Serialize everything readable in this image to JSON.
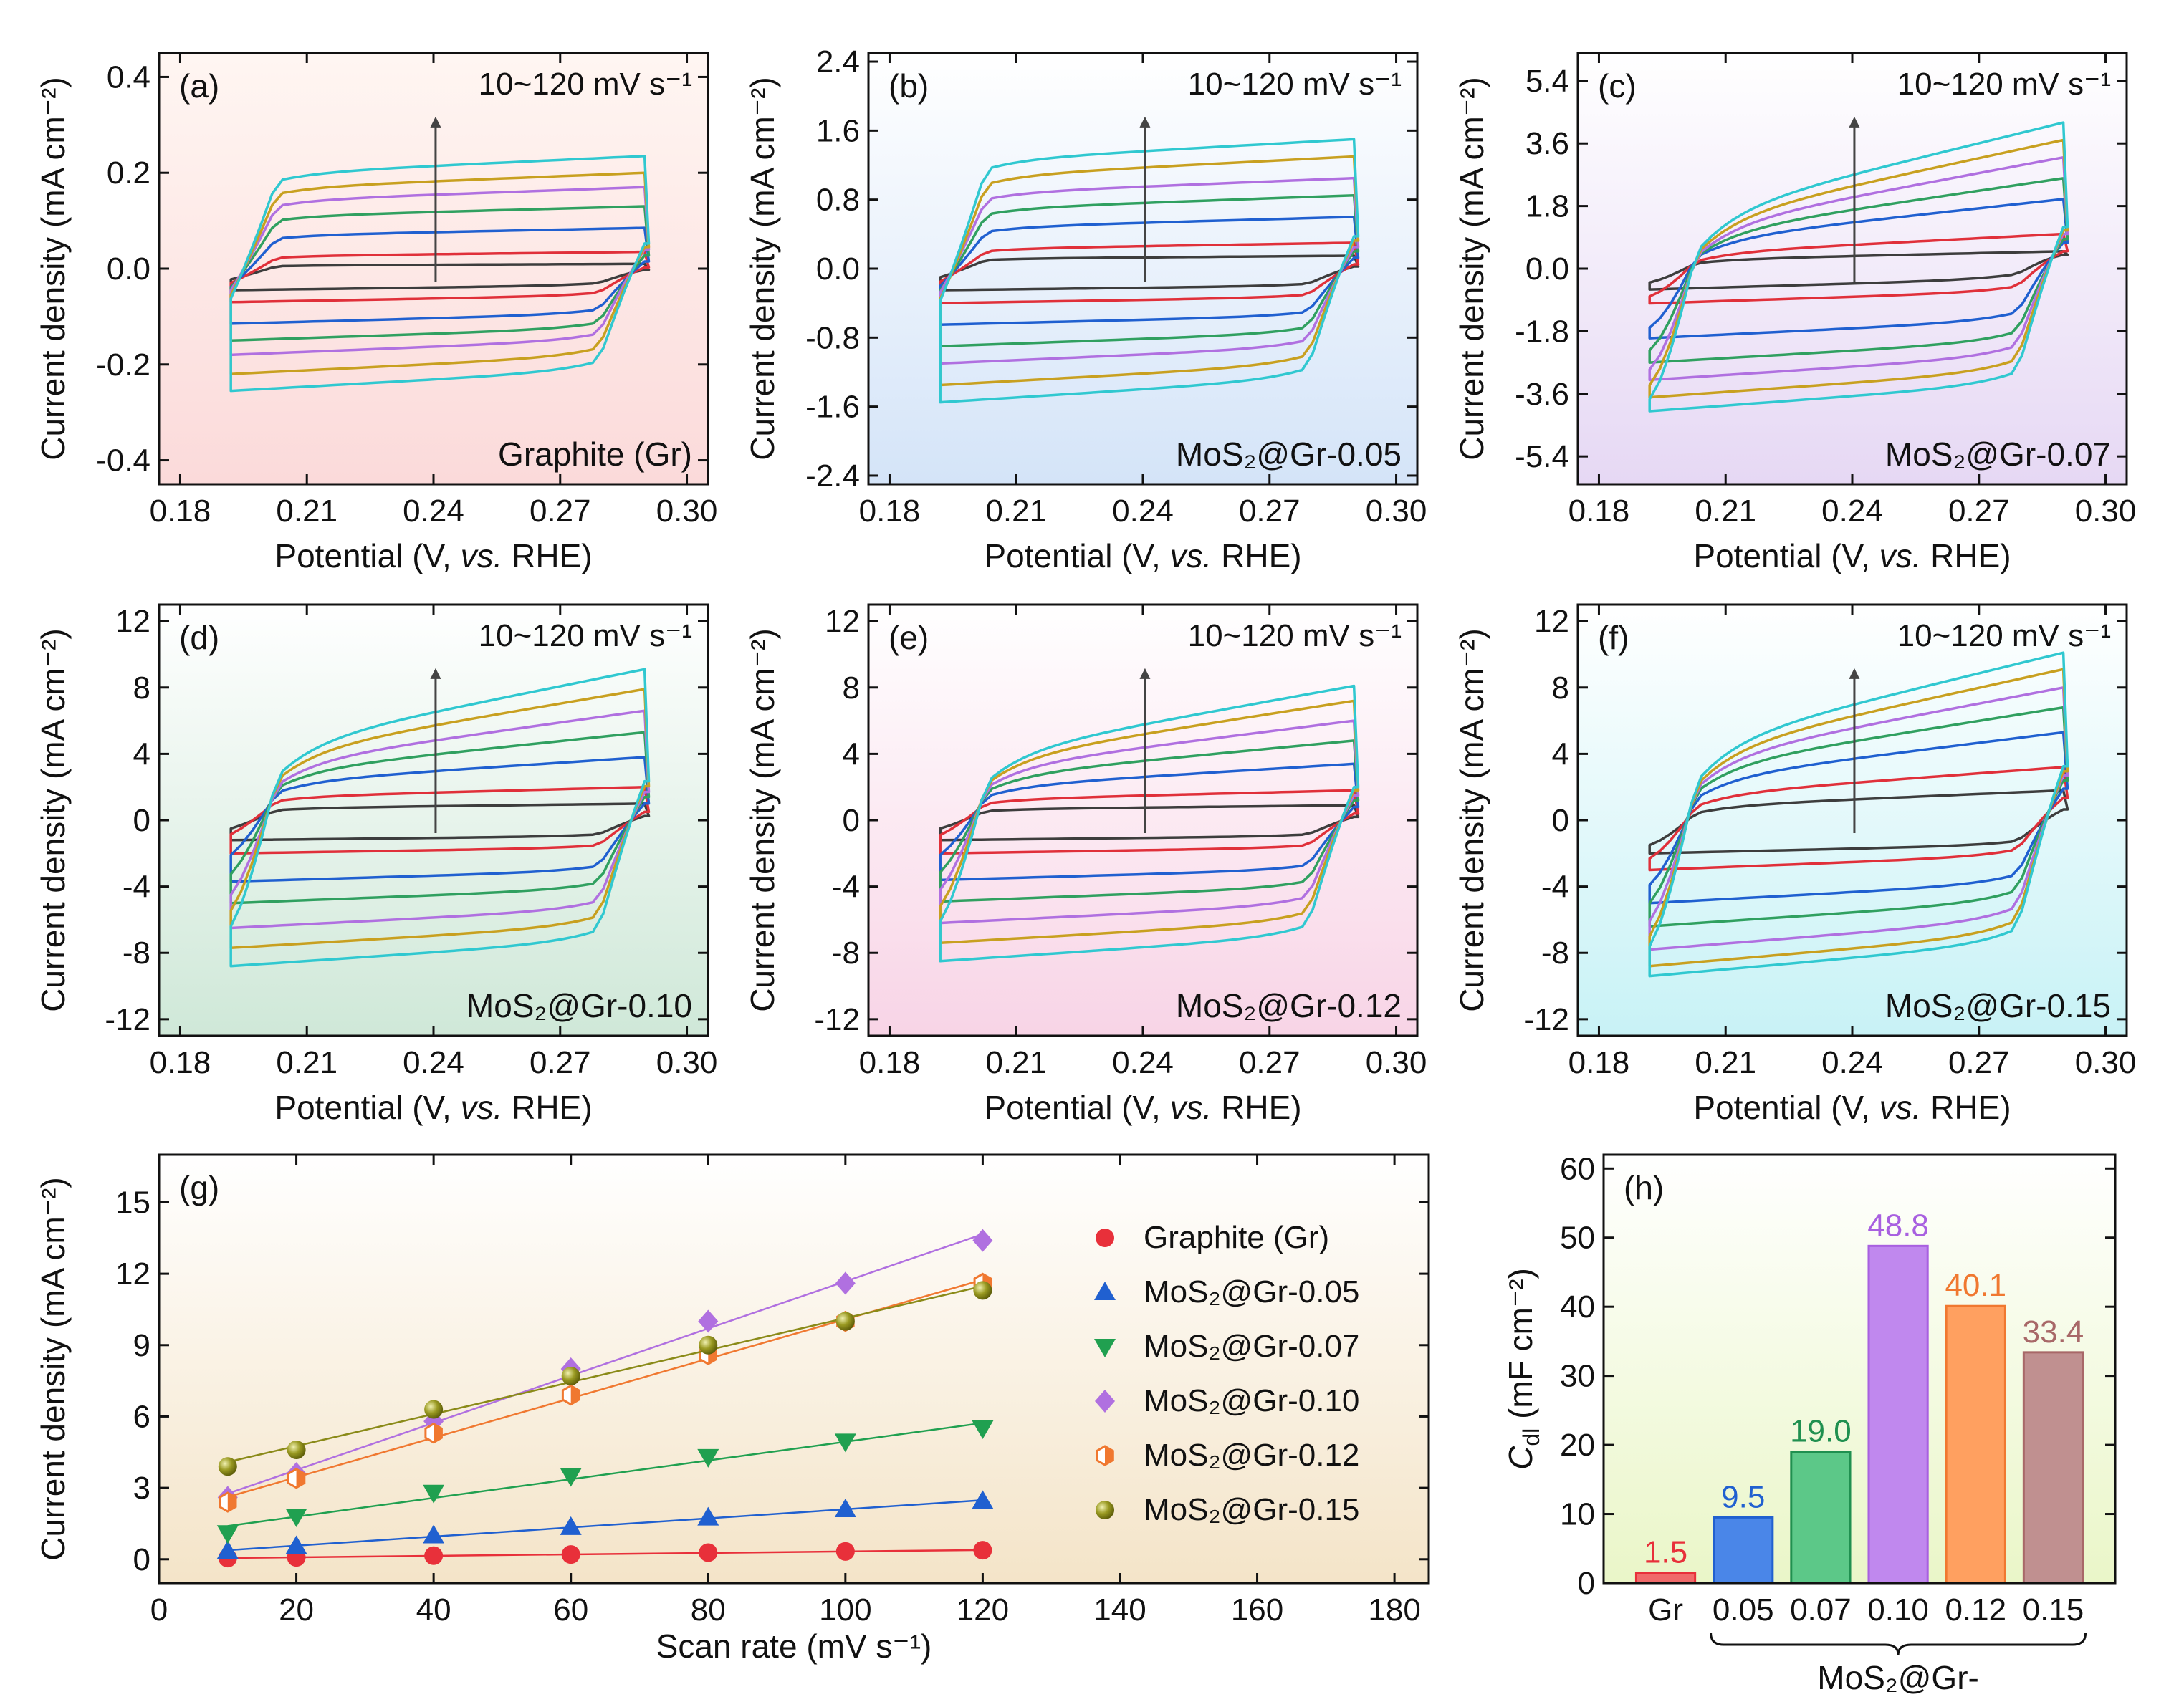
{
  "figure": {
    "background_colors": [
      "#fbe0e0",
      "#dce8f8",
      "#ece0f6",
      "#dff0e4",
      "#fbe0ee",
      "#d8f6f8"
    ],
    "cv_colors": [
      "#3d3d3d",
      "#e0303a",
      "#2060d0",
      "#30a060",
      "#b070e0",
      "#c8a020",
      "#30c8d0"
    ]
  },
  "chart_data": [
    {
      "id": "a",
      "type": "line",
      "panel_label": "(a)",
      "sample_label": "Graphite (Gr)",
      "rate_label": "10~120 mV s⁻¹",
      "xlabel_main": "Potential (V, ",
      "xlabel_italic": "vs.",
      "xlabel_end": " RHE)",
      "ylabel": "Current density (mA cm⁻²)",
      "xlim": [
        0.175,
        0.305
      ],
      "ylim": [
        -0.45,
        0.45
      ],
      "xticks": [
        "0.18",
        "0.21",
        "0.24",
        "0.27",
        "0.30"
      ],
      "yticks": [
        "-0.4",
        "-0.2",
        "0.0",
        "0.2",
        "0.4"
      ],
      "cv_loops": [
        {
          "scan_rate": 10,
          "upper_start": 0.0,
          "upper_end": 0.01,
          "lower_start": -0.045,
          "lower_end": -0.015
        },
        {
          "scan_rate": 20,
          "upper_start": 0.01,
          "upper_end": 0.035,
          "lower_start": -0.07,
          "lower_end": -0.03
        },
        {
          "scan_rate": 40,
          "upper_start": 0.04,
          "upper_end": 0.085,
          "lower_start": -0.115,
          "lower_end": -0.055
        },
        {
          "scan_rate": 60,
          "upper_start": 0.07,
          "upper_end": 0.13,
          "lower_start": -0.15,
          "lower_end": -0.075
        },
        {
          "scan_rate": 80,
          "upper_start": 0.09,
          "upper_end": 0.17,
          "lower_start": -0.18,
          "lower_end": -0.09
        },
        {
          "scan_rate": 100,
          "upper_start": 0.11,
          "upper_end": 0.2,
          "lower_start": -0.22,
          "lower_end": -0.11
        },
        {
          "scan_rate": 120,
          "upper_start": 0.13,
          "upper_end": 0.235,
          "lower_start": -0.255,
          "lower_end": -0.13
        }
      ]
    },
    {
      "id": "b",
      "type": "line",
      "panel_label": "(b)",
      "sample_label": "MoS₂@Gr-0.05",
      "rate_label": "10~120 mV s⁻¹",
      "xlabel_main": "Potential (V, ",
      "xlabel_italic": "vs.",
      "xlabel_end": " RHE)",
      "ylabel": "Current density (mA cm⁻²)",
      "xlim": [
        0.175,
        0.305
      ],
      "ylim": [
        -2.5,
        2.5
      ],
      "xticks": [
        "0.18",
        "0.21",
        "0.24",
        "0.27",
        "0.30"
      ],
      "yticks": [
        "-2.4",
        "-1.6",
        "-0.8",
        "0.0",
        "0.8",
        "1.6",
        "2.4"
      ],
      "cv_loops": [
        {
          "scan_rate": 10,
          "upper_start": 0.05,
          "upper_end": 0.15,
          "lower_start": -0.25,
          "lower_end": -0.1
        },
        {
          "scan_rate": 20,
          "upper_start": 0.1,
          "upper_end": 0.3,
          "lower_start": -0.4,
          "lower_end": -0.2
        },
        {
          "scan_rate": 40,
          "upper_start": 0.25,
          "upper_end": 0.6,
          "lower_start": -0.65,
          "lower_end": -0.35
        },
        {
          "scan_rate": 60,
          "upper_start": 0.4,
          "upper_end": 0.85,
          "lower_start": -0.9,
          "lower_end": -0.45
        },
        {
          "scan_rate": 80,
          "upper_start": 0.55,
          "upper_end": 1.05,
          "lower_start": -1.1,
          "lower_end": -0.55
        },
        {
          "scan_rate": 100,
          "upper_start": 0.65,
          "upper_end": 1.3,
          "lower_start": -1.35,
          "lower_end": -0.65
        },
        {
          "scan_rate": 120,
          "upper_start": 0.8,
          "upper_end": 1.5,
          "lower_start": -1.55,
          "lower_end": -0.75
        }
      ]
    },
    {
      "id": "c",
      "type": "line",
      "panel_label": "(c)",
      "sample_label": "MoS₂@Gr-0.07",
      "rate_label": "10~120 mV s⁻¹",
      "xlabel_main": "Potential (V, ",
      "xlabel_italic": "vs.",
      "xlabel_end": " RHE)",
      "ylabel": "Current density (mA cm⁻²)",
      "xlim": [
        0.175,
        0.305
      ],
      "ylim": [
        -6.2,
        6.2
      ],
      "xticks": [
        "0.18",
        "0.21",
        "0.24",
        "0.27",
        "0.30"
      ],
      "yticks": [
        "-5.4",
        "-3.6",
        "-1.8",
        "0.0",
        "1.8",
        "3.6",
        "5.4"
      ],
      "cv_loops": [
        {
          "scan_rate": 10,
          "upper_start": -0.2,
          "upper_end": 0.5,
          "lower_start": -0.6,
          "lower_end": 0.3
        },
        {
          "scan_rate": 20,
          "upper_start": -0.6,
          "upper_end": 1.0,
          "lower_start": -1.0,
          "lower_end": 0.0
        },
        {
          "scan_rate": 40,
          "upper_start": -1.4,
          "upper_end": 2.0,
          "lower_start": -2.0,
          "lower_end": -0.5
        },
        {
          "scan_rate": 60,
          "upper_start": -2.0,
          "upper_end": 2.6,
          "lower_start": -2.7,
          "lower_end": -0.9
        },
        {
          "scan_rate": 80,
          "upper_start": -2.6,
          "upper_end": 3.2,
          "lower_start": -3.2,
          "lower_end": -1.2
        },
        {
          "scan_rate": 100,
          "upper_start": -3.0,
          "upper_end": 3.7,
          "lower_start": -3.7,
          "lower_end": -1.5
        },
        {
          "scan_rate": 120,
          "upper_start": -3.4,
          "upper_end": 4.2,
          "lower_start": -4.1,
          "lower_end": -1.8
        }
      ]
    },
    {
      "id": "d",
      "type": "line",
      "panel_label": "(d)",
      "sample_label": "MoS₂@Gr-0.10",
      "rate_label": "10~120 mV s⁻¹",
      "xlabel_main": "Potential (V, ",
      "xlabel_italic": "vs.",
      "xlabel_end": " RHE)",
      "ylabel": "Current density (mA cm⁻²)",
      "xlim": [
        0.175,
        0.305
      ],
      "ylim": [
        -13,
        13
      ],
      "xticks": [
        "0.18",
        "0.21",
        "0.24",
        "0.27",
        "0.30"
      ],
      "yticks": [
        "-12",
        "-8",
        "-4",
        "0",
        "4",
        "8",
        "12"
      ],
      "cv_loops": [
        {
          "scan_rate": 10,
          "upper_start": 0.2,
          "upper_end": 1.0,
          "lower_start": -1.2,
          "lower_end": -0.5
        },
        {
          "scan_rate": 20,
          "upper_start": 0.3,
          "upper_end": 2.0,
          "lower_start": -2.0,
          "lower_end": -1.0
        },
        {
          "scan_rate": 40,
          "upper_start": -0.5,
          "upper_end": 3.8,
          "lower_start": -3.7,
          "lower_end": -1.8
        },
        {
          "scan_rate": 60,
          "upper_start": -1.5,
          "upper_end": 5.3,
          "lower_start": -5.0,
          "lower_end": -2.5
        },
        {
          "scan_rate": 80,
          "upper_start": -2.5,
          "upper_end": 6.6,
          "lower_start": -6.5,
          "lower_end": -3.2
        },
        {
          "scan_rate": 100,
          "upper_start": -3.2,
          "upper_end": 7.9,
          "lower_start": -7.7,
          "lower_end": -3.8
        },
        {
          "scan_rate": 120,
          "upper_start": -4.0,
          "upper_end": 9.1,
          "lower_start": -8.8,
          "lower_end": -4.4
        }
      ]
    },
    {
      "id": "e",
      "type": "line",
      "panel_label": "(e)",
      "sample_label": "MoS₂@Gr-0.12",
      "rate_label": "10~120 mV s⁻¹",
      "xlabel_main": "Potential (V, ",
      "xlabel_italic": "vs.",
      "xlabel_end": " RHE)",
      "ylabel": "Current density (mA cm⁻²)",
      "xlim": [
        0.175,
        0.305
      ],
      "ylim": [
        -13,
        13
      ],
      "xticks": [
        "0.18",
        "0.21",
        "0.24",
        "0.27",
        "0.30"
      ],
      "yticks": [
        "-12",
        "-8",
        "-4",
        "0",
        "4",
        "8",
        "12"
      ],
      "cv_loops": [
        {
          "scan_rate": 10,
          "upper_start": 0.2,
          "upper_end": 0.9,
          "lower_start": -1.2,
          "lower_end": -0.5
        },
        {
          "scan_rate": 20,
          "upper_start": 0.2,
          "upper_end": 1.8,
          "lower_start": -2.0,
          "lower_end": -1.0
        },
        {
          "scan_rate": 40,
          "upper_start": -0.6,
          "upper_end": 3.4,
          "lower_start": -3.6,
          "lower_end": -1.8
        },
        {
          "scan_rate": 60,
          "upper_start": -1.4,
          "upper_end": 4.8,
          "lower_start": -4.9,
          "lower_end": -2.4
        },
        {
          "scan_rate": 80,
          "upper_start": -2.2,
          "upper_end": 6.0,
          "lower_start": -6.2,
          "lower_end": -3.0
        },
        {
          "scan_rate": 100,
          "upper_start": -3.0,
          "upper_end": 7.2,
          "lower_start": -7.4,
          "lower_end": -3.6
        },
        {
          "scan_rate": 120,
          "upper_start": -3.7,
          "upper_end": 8.1,
          "lower_start": -8.5,
          "lower_end": -4.1
        }
      ]
    },
    {
      "id": "f",
      "type": "line",
      "panel_label": "(f)",
      "sample_label": "MoS₂@Gr-0.15",
      "rate_label": "10~120 mV s⁻¹",
      "xlabel_main": "Potential (V, ",
      "xlabel_italic": "vs.",
      "xlabel_end": " RHE)",
      "ylabel": "Current density (mA cm⁻²)",
      "xlim": [
        0.175,
        0.305
      ],
      "ylim": [
        -13,
        13
      ],
      "xticks": [
        "0.18",
        "0.21",
        "0.24",
        "0.27",
        "0.30"
      ],
      "yticks": [
        "-12",
        "-8",
        "-4",
        "0",
        "4",
        "8",
        "12"
      ],
      "cv_loops": [
        {
          "scan_rate": 10,
          "upper_start": -1.0,
          "upper_end": 1.8,
          "lower_start": -2.0,
          "lower_end": -0.5
        },
        {
          "scan_rate": 20,
          "upper_start": -1.6,
          "upper_end": 3.2,
          "lower_start": -3.0,
          "lower_end": -0.5
        },
        {
          "scan_rate": 40,
          "upper_start": -2.8,
          "upper_end": 5.3,
          "lower_start": -5.0,
          "lower_end": -1.5
        },
        {
          "scan_rate": 60,
          "upper_start": -3.6,
          "upper_end": 6.8,
          "lower_start": -6.4,
          "lower_end": -2.0
        },
        {
          "scan_rate": 80,
          "upper_start": -4.4,
          "upper_end": 8.0,
          "lower_start": -7.8,
          "lower_end": -2.6
        },
        {
          "scan_rate": 100,
          "upper_start": -5.2,
          "upper_end": 9.1,
          "lower_start": -8.8,
          "lower_end": -3.2
        },
        {
          "scan_rate": 120,
          "upper_start": -5.8,
          "upper_end": 10.1,
          "lower_start": -9.4,
          "lower_end": -3.6
        }
      ]
    },
    {
      "id": "g",
      "type": "scatter",
      "panel_label": "(g)",
      "xlabel": "Scan rate (mV s⁻¹)",
      "ylabel": "Current density (mA cm⁻²)",
      "xlim": [
        0,
        185
      ],
      "ylim": [
        -1,
        17
      ],
      "xticks": [
        "0",
        "20",
        "40",
        "60",
        "80",
        "100",
        "120",
        "140",
        "160",
        "180"
      ],
      "yticks": [
        "0",
        "3",
        "6",
        "9",
        "12",
        "15"
      ],
      "x": [
        10,
        20,
        40,
        60,
        80,
        100,
        120
      ],
      "series": [
        {
          "name": "Graphite (Gr)",
          "marker": "circle",
          "color": "#e8303a",
          "values": [
            0.05,
            0.08,
            0.15,
            0.2,
            0.28,
            0.33,
            0.38
          ]
        },
        {
          "name": "MoS₂@Gr-0.05",
          "marker": "triangle-up",
          "color": "#2060d0",
          "values": [
            0.35,
            0.55,
            1.0,
            1.35,
            1.75,
            2.1,
            2.45
          ]
        },
        {
          "name": "MoS₂@Gr-0.07",
          "marker": "triangle-down",
          "color": "#20a050",
          "values": [
            1.1,
            1.8,
            2.8,
            3.5,
            4.3,
            4.95,
            5.5
          ]
        },
        {
          "name": "MoS₂@Gr-0.10",
          "marker": "diamond",
          "color": "#b070e0",
          "values": [
            2.6,
            3.6,
            5.8,
            8.0,
            10.0,
            11.6,
            13.4
          ]
        },
        {
          "name": "MoS₂@Gr-0.12",
          "marker": "hexagon",
          "color": "#f07830",
          "values": [
            2.4,
            3.4,
            5.3,
            6.9,
            8.6,
            10.0,
            11.6
          ]
        },
        {
          "name": "MoS₂@Gr-0.15",
          "marker": "sphere",
          "color": "#8a8a18",
          "values": [
            3.9,
            4.6,
            6.3,
            7.7,
            9.0,
            10.0,
            11.3
          ]
        }
      ]
    },
    {
      "id": "h",
      "type": "bar",
      "panel_label": "(h)",
      "ylabel_main": "C",
      "ylabel_sub": "dl",
      "ylabel_end": " (mF cm⁻²)",
      "xgroup_label": "MoS₂@Gr-",
      "ylim": [
        0,
        62
      ],
      "yticks": [
        "0",
        "10",
        "20",
        "30",
        "40",
        "50",
        "60"
      ],
      "categories": [
        "Gr",
        "0.05",
        "0.07",
        "0.10",
        "0.12",
        "0.15"
      ],
      "values": [
        1.5,
        9.5,
        19.0,
        48.8,
        40.1,
        33.4
      ],
      "value_labels": [
        "1.5",
        "9.5",
        "19.0",
        "48.8",
        "40.1",
        "33.4"
      ],
      "bar_colors": [
        "#f06a6a",
        "#4a86e8",
        "#5cc888",
        "#c088ee",
        "#ffa060",
        "#c09090"
      ],
      "label_colors": [
        "#e8303a",
        "#2060d0",
        "#209050",
        "#a860e0",
        "#f07830",
        "#a86868"
      ]
    }
  ]
}
